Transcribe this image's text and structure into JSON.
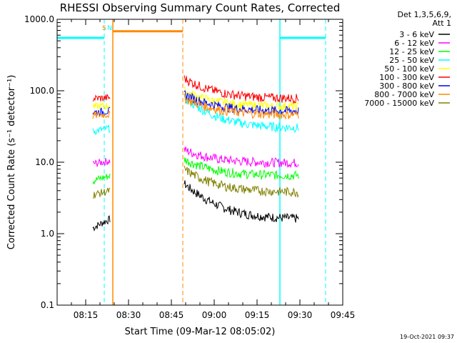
{
  "chart_data": {
    "type": "line",
    "title": "RHESSI Observing Summary Count Rates, Corrected",
    "xlabel": "Start Time (09-Mar-12 08:05:02)",
    "ylabel": "Corrected Count Rate (s⁻¹ detector⁻¹)",
    "yscale": "log",
    "ylim": [
      0.1,
      1000
    ],
    "xlim_min": [
      0,
      100
    ],
    "x_ticks": [
      {
        "t": 10,
        "label": "08:15"
      },
      {
        "t": 25,
        "label": "08:30"
      },
      {
        "t": 40,
        "label": "08:45"
      },
      {
        "t": 55,
        "label": "09:00"
      },
      {
        "t": 70,
        "label": "09:15"
      },
      {
        "t": 85,
        "label": "09:30"
      },
      {
        "t": 100,
        "label": "09:45"
      }
    ],
    "y_ticks": [
      {
        "v": 0.1,
        "label": "0.1"
      },
      {
        "v": 1,
        "label": "1.0"
      },
      {
        "v": 10,
        "label": "10.0"
      },
      {
        "v": 100,
        "label": "100.0"
      },
      {
        "v": 1000,
        "label": "1000.0"
      }
    ],
    "legend_header": [
      "Det 1,3,5,6,9,",
      "Att 1"
    ],
    "legend_placement": "right",
    "timestamp": "19-Oct-2021 09:37",
    "series": [
      {
        "name": "3 - 6 keV",
        "color": "#000000",
        "seg1": [
          1.2,
          1.6
        ],
        "seg2_start": 5.0,
        "seg2_end": 1.6
      },
      {
        "name": "6 - 12 keV",
        "color": "#ff00ff",
        "seg1": [
          9.5,
          10.5
        ],
        "seg2_start": 15,
        "seg2_end": 9.8
      },
      {
        "name": "12 - 25 keV",
        "color": "#00ff00",
        "seg1": [
          5.5,
          6.5
        ],
        "seg2_start": 11,
        "seg2_end": 6.5
      },
      {
        "name": "25 - 50 keV",
        "color": "#00ffff",
        "seg1": [
          27,
          30
        ],
        "seg2_start": 80,
        "seg2_end": 30
      },
      {
        "name": "50 - 100 keV",
        "color": "#ffff00",
        "seg1": [
          60,
          62
        ],
        "seg2_start": 100,
        "seg2_end": 60
      },
      {
        "name": "100 - 300 keV",
        "color": "#ff0000",
        "seg1": [
          78,
          80
        ],
        "seg2_start": 150,
        "seg2_end": 78
      },
      {
        "name": "300 - 800 keV",
        "color": "#0000ff",
        "seg1": [
          50,
          52
        ],
        "seg2_start": 90,
        "seg2_end": 52
      },
      {
        "name": "800 - 7000 keV",
        "color": "#ff8800",
        "seg1": [
          45,
          47
        ],
        "seg2_start": 80,
        "seg2_end": 46
      },
      {
        "name": "7000 - 15000 keV",
        "color": "#808000",
        "seg1": [
          3.5,
          4.0
        ],
        "seg2_start": 8,
        "seg2_end": 3.8
      }
    ],
    "segments_min": [
      [
        12.5,
        18.5
      ],
      [
        44.5,
        84.5
      ]
    ],
    "annotations": [
      {
        "text": "S",
        "color": "#ff8800",
        "t": 16.5
      },
      {
        "text": "N",
        "color": "#00ffff",
        "t": 18.4
      }
    ],
    "night_markers_min": [
      [
        0,
        16.5
      ],
      [
        78,
        94
      ]
    ],
    "saa_marker_min": [
      19.5,
      44
    ],
    "night_level": 550,
    "saa_level": 680
  }
}
